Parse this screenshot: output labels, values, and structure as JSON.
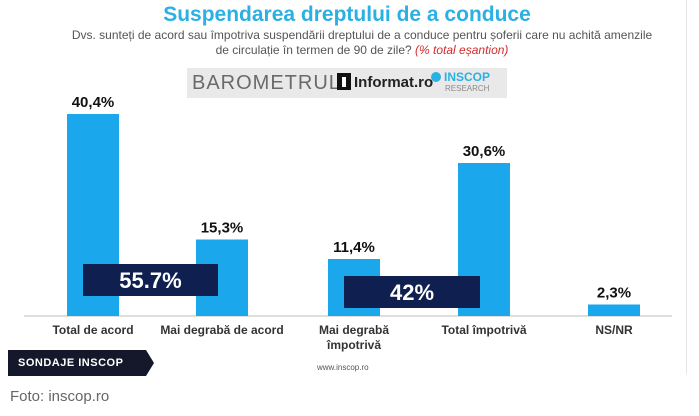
{
  "header": {
    "title": "Suspendarea dreptului de a conduce",
    "subtitle_line1": "Dvs. sunteți de acord sau împotriva suspendării dreptului de a conduce pentru șoferii care nu achită amenzile",
    "subtitle_line2": "de circulație în termen de 90 de zile?",
    "sample_note": "(% total eșantion)"
  },
  "logos": {
    "barometru": "BAROMETRUL",
    "informat": "Informat.ro",
    "inscop": "INSCOP",
    "inscop_sub": "RESEARCH"
  },
  "chart_data": {
    "type": "bar",
    "title": "Suspendarea dreptului de a conduce",
    "categories": [
      "Total de acord",
      "Mai degrabă de acord",
      "Mai degrabă împotrivă",
      "Total împotrivă",
      "NS/NR"
    ],
    "values": [
      40.4,
      15.3,
      11.4,
      30.6,
      2.3
    ],
    "value_labels": [
      "40,4%",
      "15,3%",
      "11,4%",
      "30,6%",
      "2,3%"
    ],
    "ylim": [
      0,
      45
    ],
    "bar_color": "#1aa7ec",
    "totals": [
      {
        "label": "55.7%",
        "value": 55.7,
        "spans": [
          0,
          1
        ]
      },
      {
        "label": "42%",
        "value": 42,
        "spans": [
          2,
          3
        ]
      }
    ],
    "total_box_color": "#0f1f4f"
  },
  "footer": {
    "url": "www.inscop.ro",
    "badge": "SONDAJE INSCOP",
    "caption": "Foto: inscop.ro"
  }
}
